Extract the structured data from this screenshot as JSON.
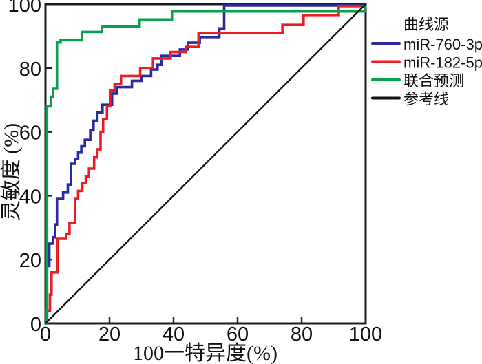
{
  "chart_data": {
    "type": "line",
    "subtype": "roc-step-curves",
    "title": "",
    "xlabel": "100一特异度(%)",
    "ylabel": "灵敏度 (%)",
    "xlim": [
      0,
      100
    ],
    "ylim": [
      0,
      100
    ],
    "x_ticks": [
      0,
      20,
      40,
      60,
      80,
      100
    ],
    "y_ticks": [
      0,
      20,
      40,
      60,
      80,
      100
    ],
    "grid": false,
    "legend_title": "曲线源",
    "legend_position": "outside-top-right",
    "axis_color": "#1c1c1c",
    "series": [
      {
        "name": "miR-760-3p",
        "color": "#2b2b9e",
        "reference": false,
        "points": [
          [
            0,
            0
          ],
          [
            0.5,
            0
          ],
          [
            0.5,
            18
          ],
          [
            1.2,
            18
          ],
          [
            1.2,
            25
          ],
          [
            2.4,
            25
          ],
          [
            2.4,
            27
          ],
          [
            3,
            27
          ],
          [
            3,
            31
          ],
          [
            3.6,
            31
          ],
          [
            3.6,
            39
          ],
          [
            5.5,
            39
          ],
          [
            5.5,
            41
          ],
          [
            7,
            41
          ],
          [
            7,
            43.5
          ],
          [
            8,
            43.5
          ],
          [
            8,
            50
          ],
          [
            9.2,
            50
          ],
          [
            9.2,
            51.5
          ],
          [
            10.2,
            51.5
          ],
          [
            10.2,
            53.5
          ],
          [
            11.2,
            53.5
          ],
          [
            11.2,
            55.5
          ],
          [
            12.3,
            55.5
          ],
          [
            12.3,
            57.5
          ],
          [
            14,
            57.5
          ],
          [
            14,
            60.5
          ],
          [
            15,
            60.5
          ],
          [
            15,
            63.5
          ],
          [
            16.2,
            63.5
          ],
          [
            16.2,
            66
          ],
          [
            17.8,
            66
          ],
          [
            17.8,
            68.5
          ],
          [
            20.8,
            68.5
          ],
          [
            20.8,
            72
          ],
          [
            22.3,
            72
          ],
          [
            22.3,
            74
          ],
          [
            27,
            74
          ],
          [
            27,
            76
          ],
          [
            30,
            76
          ],
          [
            30,
            77.5
          ],
          [
            33,
            77.5
          ],
          [
            33,
            79.5
          ],
          [
            35,
            79.5
          ],
          [
            35,
            81
          ],
          [
            36.3,
            81
          ],
          [
            36.3,
            83.8
          ],
          [
            42,
            83.8
          ],
          [
            42,
            85.8
          ],
          [
            44.5,
            85.8
          ],
          [
            44.5,
            87.9
          ],
          [
            48.2,
            87.9
          ],
          [
            48.2,
            89.7
          ],
          [
            54.3,
            89.7
          ],
          [
            54.3,
            92.4
          ],
          [
            55.8,
            92.4
          ],
          [
            55.8,
            99.6
          ],
          [
            99.5,
            99.6
          ],
          [
            100,
            100
          ]
        ]
      },
      {
        "name": "miR-182-5p",
        "color": "#ec1c24",
        "reference": false,
        "points": [
          [
            0,
            0
          ],
          [
            0.3,
            0
          ],
          [
            0.3,
            4
          ],
          [
            1.4,
            4
          ],
          [
            1.4,
            9
          ],
          [
            1.9,
            9
          ],
          [
            1.9,
            16
          ],
          [
            3.8,
            16
          ],
          [
            3.8,
            26.5
          ],
          [
            6.4,
            26.5
          ],
          [
            6.4,
            28
          ],
          [
            7.5,
            28
          ],
          [
            7.5,
            31.5
          ],
          [
            9.2,
            31.5
          ],
          [
            9.2,
            39
          ],
          [
            10.2,
            39
          ],
          [
            10.2,
            41.5
          ],
          [
            11.5,
            41.5
          ],
          [
            11.5,
            44
          ],
          [
            12.6,
            44
          ],
          [
            12.6,
            46
          ],
          [
            13.6,
            46
          ],
          [
            13.6,
            48.5
          ],
          [
            15.2,
            48.5
          ],
          [
            15.2,
            52
          ],
          [
            16.2,
            52
          ],
          [
            16.2,
            54.5
          ],
          [
            17.2,
            54.5
          ],
          [
            17.2,
            60
          ],
          [
            18,
            60
          ],
          [
            18,
            64
          ],
          [
            19.2,
            64
          ],
          [
            19.2,
            68
          ],
          [
            20.2,
            68
          ],
          [
            20.2,
            73
          ],
          [
            21.6,
            73
          ],
          [
            21.6,
            75
          ],
          [
            23.6,
            75
          ],
          [
            23.6,
            77.5
          ],
          [
            29.6,
            77.5
          ],
          [
            29.6,
            80
          ],
          [
            33.6,
            80
          ],
          [
            33.6,
            83
          ],
          [
            39.1,
            83
          ],
          [
            39.1,
            85
          ],
          [
            43.9,
            85
          ],
          [
            43.9,
            86.6
          ],
          [
            47.8,
            86.6
          ],
          [
            47.8,
            90.9
          ],
          [
            74,
            90.9
          ],
          [
            74,
            93.5
          ],
          [
            80.6,
            93.5
          ],
          [
            80.6,
            96.6
          ],
          [
            91.6,
            96.6
          ],
          [
            91.6,
            99.4
          ],
          [
            99.6,
            99.4
          ],
          [
            100,
            100
          ]
        ]
      },
      {
        "name": "联合预测",
        "color": "#0aa04c",
        "reference": false,
        "points": [
          [
            0,
            0
          ],
          [
            0.5,
            0
          ],
          [
            0.5,
            68
          ],
          [
            1.7,
            68
          ],
          [
            1.7,
            71
          ],
          [
            2.4,
            71
          ],
          [
            2.4,
            73.5
          ],
          [
            3.6,
            73.5
          ],
          [
            3.6,
            88
          ],
          [
            4.7,
            88
          ],
          [
            4.7,
            88.7
          ],
          [
            11.4,
            88.7
          ],
          [
            11.4,
            91.3
          ],
          [
            17.6,
            91.3
          ],
          [
            17.6,
            93
          ],
          [
            29.4,
            93
          ],
          [
            29.4,
            95.2
          ],
          [
            39.5,
            95.2
          ],
          [
            39.5,
            97.7
          ],
          [
            99.7,
            97.7
          ],
          [
            100,
            100
          ]
        ]
      },
      {
        "name": "参考线",
        "color": "#111111",
        "reference": true,
        "points": [
          [
            0,
            0
          ],
          [
            100,
            100
          ]
        ]
      }
    ]
  }
}
